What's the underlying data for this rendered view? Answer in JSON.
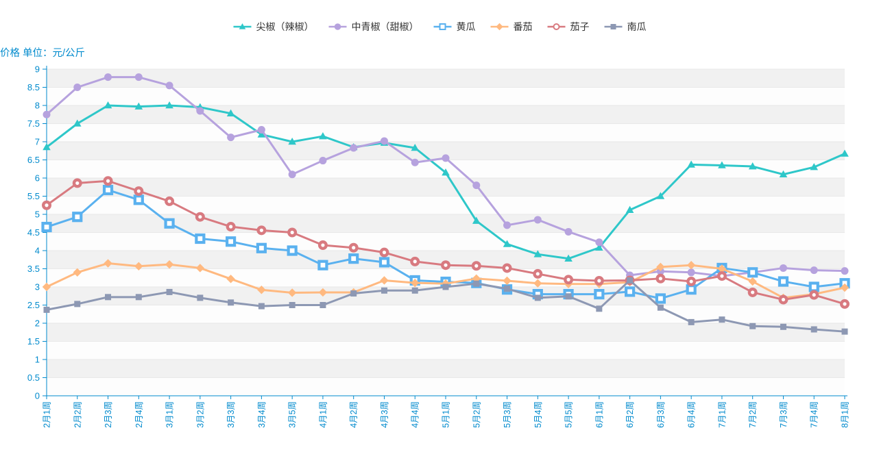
{
  "title": "价格 单位：元/公斤",
  "chart_data": {
    "type": "line",
    "title": "价格 单位：元/公斤",
    "legend_position": "top",
    "grid": true,
    "axis_color": "#008acd",
    "grid_line_color": "#e8e8e8",
    "band_colors": [
      "rgba(250,250,250,0.45)",
      "rgba(200,200,200,0.25)"
    ],
    "ylim": [
      0,
      9
    ],
    "ytick_step": 0.5,
    "categories": [
      "2月1周",
      "2月2周",
      "2月3周",
      "2月4周",
      "3月1周",
      "3月2周",
      "3月3周",
      "3月4周",
      "3月5周",
      "4月1周",
      "4月2周",
      "4月3周",
      "4月4周",
      "5月1周",
      "5月2周",
      "5月3周",
      "5月4周",
      "5月5周",
      "6月1周",
      "6月2周",
      "6月3周",
      "6月4周",
      "7月1周",
      "7月2周",
      "7月3周",
      "7月4周",
      "8月1周"
    ],
    "series": [
      {
        "key": "hot-pepper",
        "name": "尖椒（辣椒）",
        "color": "#2ec7c9",
        "symbol": "triangle",
        "values": [
          6.85,
          7.5,
          8.0,
          7.97,
          8.0,
          7.95,
          7.78,
          7.2,
          7.0,
          7.15,
          6.85,
          6.97,
          6.83,
          6.15,
          4.82,
          4.18,
          3.9,
          3.78,
          4.08,
          5.12,
          5.5,
          6.37,
          6.35,
          6.32,
          6.1,
          6.3,
          6.67
        ]
      },
      {
        "key": "bell-pepper",
        "name": "中青椒（甜椒）",
        "color": "#b6a2de",
        "symbol": "circle",
        "values": [
          7.75,
          8.5,
          8.78,
          8.78,
          8.55,
          7.85,
          7.12,
          7.33,
          6.1,
          6.48,
          6.83,
          7.02,
          6.43,
          6.55,
          5.8,
          4.7,
          4.85,
          4.52,
          4.23,
          3.32,
          3.43,
          3.4,
          3.3,
          3.4,
          3.52,
          3.46,
          3.44
        ]
      },
      {
        "key": "cucumber",
        "name": "黄瓜",
        "color": "#5ab1ef",
        "symbol": "empty-square",
        "values": [
          4.65,
          4.93,
          5.67,
          5.4,
          4.75,
          4.33,
          4.25,
          4.07,
          4.0,
          3.6,
          3.78,
          3.68,
          3.18,
          3.14,
          3.11,
          2.93,
          2.8,
          2.8,
          2.8,
          2.87,
          2.68,
          2.93,
          3.52,
          3.4,
          3.15,
          3.0,
          3.1
        ]
      },
      {
        "key": "tomato",
        "name": "番茄",
        "color": "#ffb980",
        "symbol": "diamond",
        "values": [
          3.0,
          3.4,
          3.65,
          3.57,
          3.62,
          3.52,
          3.22,
          2.92,
          2.84,
          2.85,
          2.85,
          3.18,
          3.11,
          3.09,
          3.23,
          3.17,
          3.1,
          3.08,
          3.08,
          3.13,
          3.55,
          3.6,
          3.5,
          3.15,
          2.7,
          2.8,
          2.98
        ]
      },
      {
        "key": "eggplant",
        "name": "茄子",
        "color": "#d87a80",
        "symbol": "empty-circle",
        "values": [
          5.25,
          5.86,
          5.92,
          5.64,
          5.36,
          4.93,
          4.66,
          4.56,
          4.5,
          4.15,
          4.08,
          3.95,
          3.7,
          3.6,
          3.58,
          3.52,
          3.36,
          3.2,
          3.17,
          3.18,
          3.23,
          3.15,
          3.3,
          2.85,
          2.65,
          2.78,
          2.53
        ]
      },
      {
        "key": "pumpkin",
        "name": "南瓜",
        "color": "#8d98b3",
        "symbol": "square",
        "values": [
          2.37,
          2.53,
          2.72,
          2.72,
          2.86,
          2.7,
          2.57,
          2.47,
          2.5,
          2.5,
          2.82,
          2.9,
          2.9,
          3.0,
          3.09,
          2.95,
          2.7,
          2.74,
          2.4,
          3.18,
          2.43,
          2.03,
          2.1,
          1.92,
          1.9,
          1.83,
          1.77
        ]
      }
    ]
  }
}
